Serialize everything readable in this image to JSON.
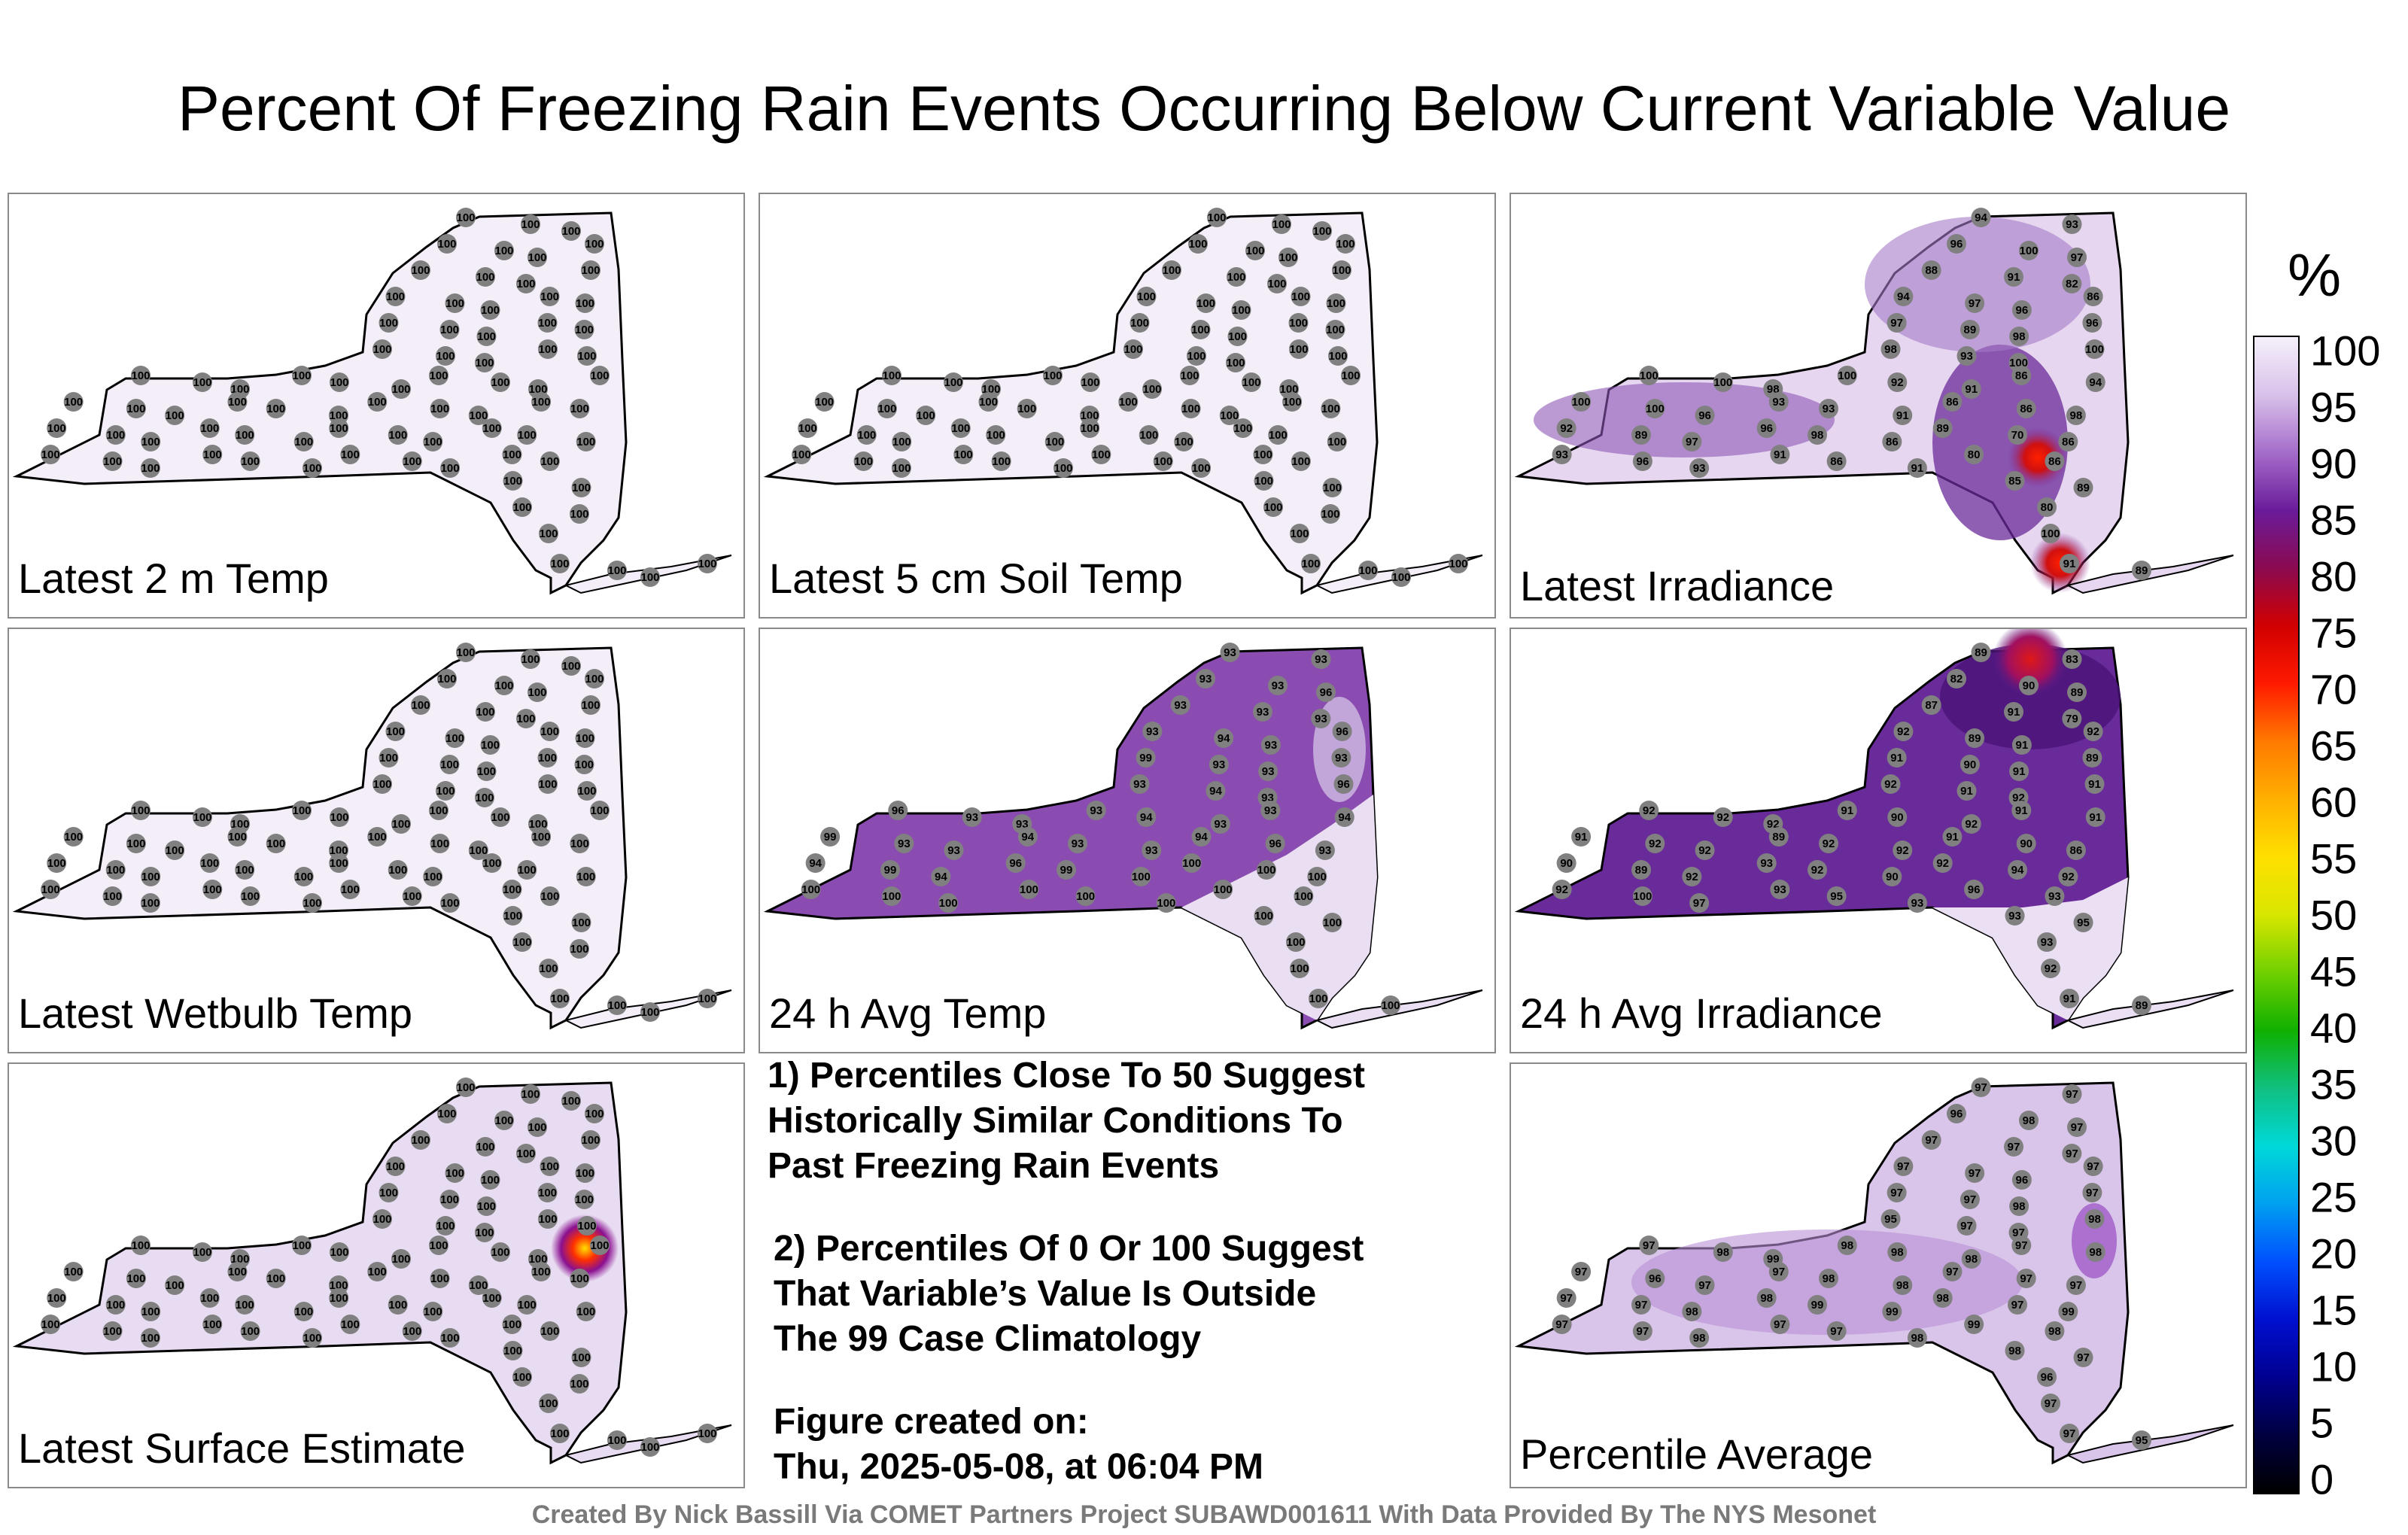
{
  "title": "Percent Of Freezing Rain Events Occurring Below Current Variable Value",
  "panels": [
    {
      "label": "Latest 2 m Temp",
      "fill": "#f3eef8",
      "values": [
        "100",
        "100",
        "100",
        "100",
        "100",
        "100",
        "100",
        "100",
        "100",
        "100",
        "100",
        "100",
        "100",
        "100",
        "100",
        "100",
        "100",
        "100",
        "100",
        "100",
        "100",
        "100",
        "100",
        "100",
        "100",
        "100",
        "100",
        "100",
        "100",
        "100",
        "100",
        "100",
        "100",
        "100",
        "100",
        "100",
        "100",
        "100",
        "100",
        "100",
        "100",
        "100",
        "100",
        "100",
        "100",
        "100",
        "100",
        "100",
        "100",
        "100",
        "100",
        "100",
        "100",
        "100",
        "100",
        "100",
        "100",
        "100",
        "100",
        "100",
        "100",
        "100",
        "100",
        "100",
        "100",
        "100",
        "100",
        "100",
        "100",
        "100",
        "100",
        "100",
        "100",
        "100",
        "100",
        "100",
        "100",
        "100",
        "100",
        "100"
      ]
    },
    {
      "label": "Latest 5 cm Soil Temp",
      "fill": "#f3eef8",
      "values": [
        "100",
        "100",
        "100",
        "100",
        "100",
        "100",
        "100",
        "100",
        "100",
        "100",
        "100",
        "100",
        "100",
        "100",
        "100",
        "100",
        "100",
        "100",
        "100",
        "100",
        "100",
        "100",
        "100",
        "100",
        "100",
        "100",
        "100",
        "100",
        "100",
        "100",
        "100",
        "100",
        "100",
        "100",
        "100",
        "100",
        "100",
        "100",
        "100",
        "100",
        "100",
        "100",
        "100",
        "100",
        "100",
        "100",
        "100",
        "100",
        "100",
        "100",
        "100",
        "100",
        "100",
        "100",
        "100",
        "100",
        "100",
        "100",
        "100",
        "100",
        "100",
        "100",
        "100",
        "100",
        "100",
        "100",
        "100",
        "100",
        "100",
        "100",
        "100",
        "100",
        "100",
        "100",
        "100",
        "100",
        "100",
        "100",
        "100",
        "100"
      ]
    },
    {
      "label": "Latest Irradiance",
      "fill": "#e6d6ef",
      "values": [
        "94",
        "93",
        "96",
        "100",
        "97",
        "88",
        "91",
        "82",
        "94",
        "97",
        "96",
        "86",
        "97",
        "89",
        "98",
        "96",
        "98",
        "93",
        "100",
        "100",
        "100",
        "100",
        "98",
        "100",
        "92",
        "91",
        "86",
        "94",
        "100",
        "100",
        "96",
        "93",
        "93",
        "91",
        "86",
        "86",
        "98",
        "92",
        "89",
        "97",
        "96",
        "98",
        "86",
        "89",
        "70",
        "86",
        "93",
        "96",
        "93",
        "91",
        "86",
        "91",
        "80",
        "86",
        "85",
        "89",
        "80",
        "100",
        "91",
        "89"
      ]
    },
    {
      "label": "Latest Wetbulb Temp",
      "fill": "#f3eef8",
      "values": [
        "100",
        "100",
        "100",
        "100",
        "100",
        "100",
        "100",
        "100",
        "100",
        "100",
        "100",
        "100",
        "100",
        "100",
        "100",
        "100",
        "100",
        "100",
        "100",
        "100",
        "100",
        "100",
        "100",
        "100",
        "100",
        "100",
        "100",
        "100",
        "100",
        "100",
        "100",
        "100",
        "100",
        "100",
        "100",
        "100",
        "100",
        "100",
        "100",
        "100",
        "100",
        "100",
        "100",
        "100",
        "100",
        "100",
        "100",
        "100",
        "100",
        "100",
        "100",
        "100",
        "100",
        "100",
        "100",
        "100",
        "100",
        "100",
        "100",
        "100",
        "100",
        "100",
        "100",
        "100",
        "100",
        "100",
        "100",
        "100",
        "100",
        "100",
        "100",
        "100",
        "100",
        "100",
        "100",
        "100",
        "100",
        "100",
        "100",
        "100"
      ]
    },
    {
      "label": "24 h Avg Temp",
      "fill": "#8a4cb0",
      "values": [
        "93",
        "93",
        "93",
        "93",
        "96",
        "93",
        "93",
        "93",
        "93",
        "94",
        "93",
        "96",
        "99",
        "93",
        "93",
        "93",
        "93",
        "94",
        "93",
        "96",
        "96",
        "93",
        "93",
        "93",
        "94",
        "93",
        "93",
        "94",
        "99",
        "93",
        "93",
        "94",
        "93",
        "93",
        "94",
        "96",
        "93",
        "94",
        "99",
        "94",
        "96",
        "99",
        "100",
        "100",
        "100",
        "100",
        "100",
        "100",
        "100",
        "100",
        "100",
        "100",
        "100",
        "100",
        "100",
        "100",
        "100",
        "100",
        "100",
        "100"
      ]
    },
    {
      "label": "24 h Avg Irradiance",
      "fill": "#6a2b9a",
      "values": [
        "89",
        "83",
        "82",
        "90",
        "89",
        "87",
        "91",
        "79",
        "92",
        "89",
        "91",
        "92",
        "91",
        "90",
        "91",
        "89",
        "92",
        "91",
        "92",
        "91",
        "92",
        "92",
        "92",
        "91",
        "90",
        "92",
        "91",
        "91",
        "91",
        "92",
        "92",
        "89",
        "92",
        "92",
        "91",
        "90",
        "86",
        "90",
        "89",
        "92",
        "93",
        "92",
        "90",
        "92",
        "94",
        "92",
        "92",
        "100",
        "97",
        "93",
        "95",
        "93",
        "96",
        "93",
        "93",
        "95",
        "93",
        "92",
        "91",
        "89"
      ]
    },
    {
      "label": "Latest Surface Estimate",
      "fill": "#e8dcf2",
      "values": [
        "100",
        "100",
        "100",
        "100",
        "100",
        "100",
        "100",
        "100",
        "100",
        "100",
        "100",
        "100",
        "100",
        "100",
        "100",
        "100",
        "100",
        "100",
        "100",
        "100",
        "100",
        "100",
        "100",
        "100",
        "100",
        "100",
        "100",
        "100",
        "100",
        "100",
        "100",
        "100",
        "100",
        "100",
        "100",
        "100",
        "100",
        "100",
        "100",
        "100",
        "100",
        "100",
        "100",
        "100",
        "100",
        "100",
        "100",
        "100",
        "100",
        "100",
        "100",
        "100",
        "100",
        "100",
        "100",
        "100",
        "100",
        "100",
        "100",
        "100",
        "100",
        "100",
        "100",
        "100",
        "100",
        "100",
        "100",
        "100",
        "100",
        "100",
        "100",
        "100",
        "100",
        "100",
        "100",
        "100",
        "100",
        "100",
        "100",
        "100"
      ]
    },
    {
      "label": "Percentile Average",
      "fill": "#d9c4ea",
      "values": [
        "97",
        "97",
        "96",
        "98",
        "97",
        "97",
        "97",
        "97",
        "97",
        "97",
        "96",
        "97",
        "97",
        "97",
        "98",
        "97",
        "95",
        "97",
        "97",
        "98",
        "97",
        "98",
        "99",
        "98",
        "98",
        "98",
        "97",
        "98",
        "97",
        "96",
        "97",
        "97",
        "98",
        "98",
        "97",
        "97",
        "97",
        "97",
        "97",
        "98",
        "98",
        "99",
        "99",
        "98",
        "97",
        "99",
        "97",
        "97",
        "98",
        "97",
        "97",
        "98",
        "99",
        "98",
        "98",
        "97",
        "96",
        "97",
        "97",
        "95"
      ]
    }
  ],
  "notes": [
    "1) Percentiles Close To 50 Suggest\nHistorically Similar Conditions To\nPast Freezing Rain Events",
    "2) Percentiles Of 0 Or 100 Suggest\nThat Variable’s Value Is Outside\nThe 99 Case Climatology",
    "Figure created on:\nThu, 2025-05-08, at 06:04 PM"
  ],
  "credit": "Created By Nick Bassill Via COMET Partners Project SUBAWD001611 With Data Provided By The NYS Mesonet",
  "colorbar": {
    "unit": "%",
    "ticks": [
      "100",
      "95",
      "90",
      "85",
      "80",
      "75",
      "70",
      "65",
      "60",
      "55",
      "50",
      "45",
      "40",
      "35",
      "30",
      "25",
      "20",
      "15",
      "10",
      "5",
      "0"
    ],
    "colors": [
      "#f5f0fa",
      "#d8c1ea",
      "#a56dca",
      "#6a1b9a",
      "#8b0a50",
      "#d10000",
      "#ff1a00",
      "#ff7a00",
      "#ffb000",
      "#ffe000",
      "#d8e600",
      "#70d000",
      "#10b000",
      "#10c080",
      "#00d8d8",
      "#00a0f0",
      "#0050ff",
      "#0010d0",
      "#000090",
      "#000040",
      "#000000"
    ]
  }
}
